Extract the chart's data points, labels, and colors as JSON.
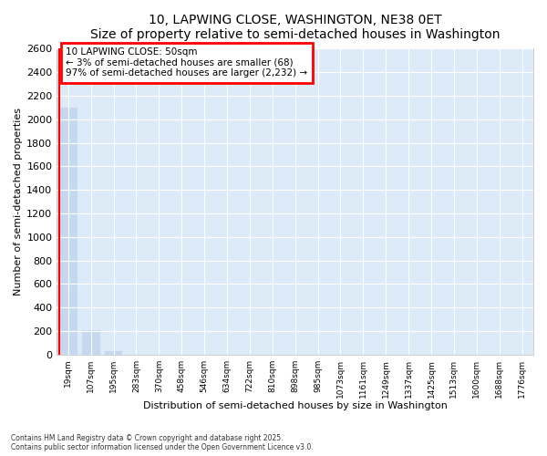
{
  "title": "10, LAPWING CLOSE, WASHINGTON, NE38 0ET",
  "subtitle": "Size of property relative to semi-detached houses in Washington",
  "xlabel": "Distribution of semi-detached houses by size in Washington",
  "ylabel": "Number of semi-detached properties",
  "bar_color": "#c5d8f0",
  "background_color": "#ddeaf8",
  "grid_color": "#ffffff",
  "fig_facecolor": "#ffffff",
  "categories": [
    "19sqm",
    "107sqm",
    "195sqm",
    "283sqm",
    "370sqm",
    "458sqm",
    "546sqm",
    "634sqm",
    "722sqm",
    "810sqm",
    "898sqm",
    "985sqm",
    "1073sqm",
    "1161sqm",
    "1249sqm",
    "1337sqm",
    "1425sqm",
    "1513sqm",
    "1600sqm",
    "1688sqm",
    "1776sqm"
  ],
  "values": [
    2100,
    210,
    30,
    0,
    0,
    0,
    0,
    0,
    0,
    0,
    0,
    0,
    0,
    0,
    0,
    0,
    0,
    0,
    0,
    0,
    0
  ],
  "annotation_title": "10 LAPWING CLOSE: 50sqm",
  "annotation_line1": "← 3% of semi-detached houses are smaller (68)",
  "annotation_line2": "97% of semi-detached houses are larger (2,232) →",
  "ylim": [
    0,
    2600
  ],
  "yticks": [
    0,
    200,
    400,
    600,
    800,
    1000,
    1200,
    1400,
    1600,
    1800,
    2000,
    2200,
    2400,
    2600
  ],
  "footnote1": "Contains HM Land Registry data © Crown copyright and database right 2025.",
  "footnote2": "Contains public sector information licensed under the Open Government Licence v3.0."
}
